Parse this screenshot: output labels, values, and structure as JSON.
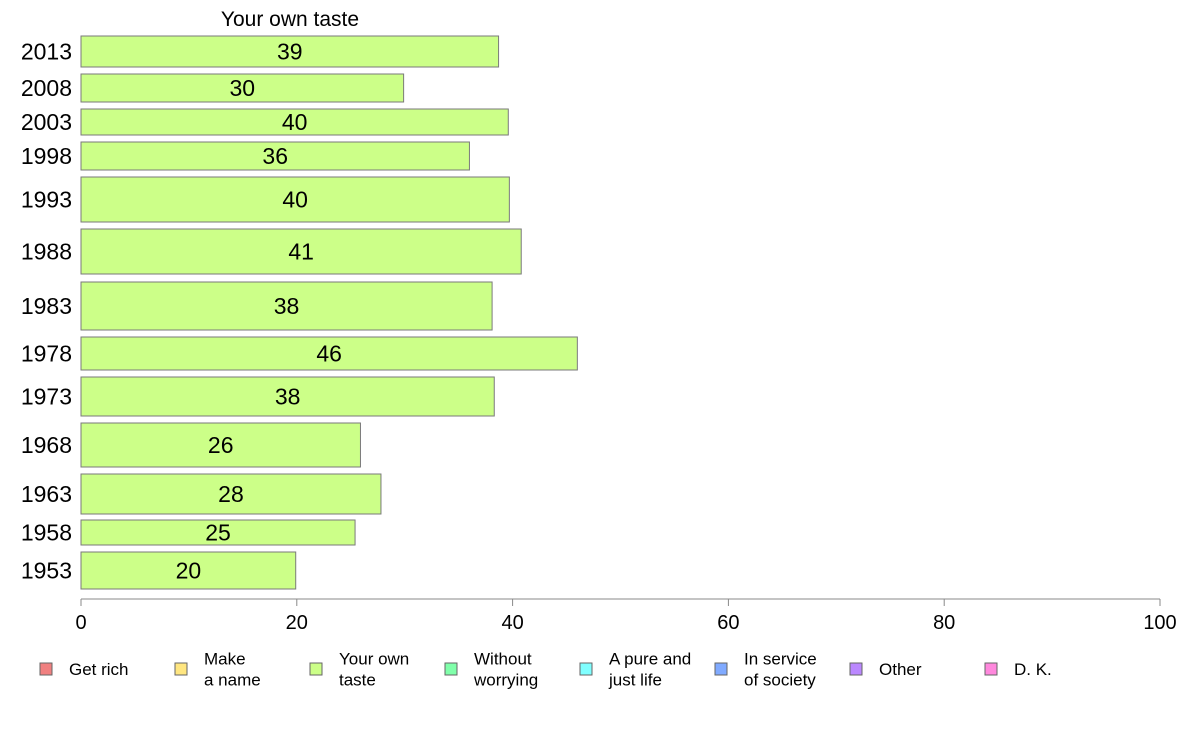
{
  "chart_data": {
    "type": "bar",
    "orientation": "horizontal",
    "title": "Your own taste",
    "xlabel": "",
    "ylabel": "",
    "xlim": [
      0,
      100
    ],
    "xticks": [
      0,
      20,
      40,
      60,
      80,
      100
    ],
    "grid": false,
    "legend_position": "bottom",
    "categories": [
      "2013",
      "2008",
      "2003",
      "1998",
      "1993",
      "1988",
      "1983",
      "1978",
      "1973",
      "1968",
      "1963",
      "1958",
      "1953"
    ],
    "series": [
      {
        "name": "Your own taste",
        "color": "#ccff88",
        "values": [
          38.7,
          29.9,
          39.6,
          36.0,
          39.7,
          40.8,
          38.1,
          46.0,
          38.3,
          25.9,
          27.8,
          25.4,
          19.9
        ],
        "labels": [
          "39",
          "30",
          "40",
          "36",
          "40",
          "41",
          "38",
          "46",
          "38",
          "26",
          "28",
          "25",
          "20"
        ]
      }
    ],
    "legend": [
      {
        "label_lines": [
          "Get rich"
        ],
        "color": "#f08080"
      },
      {
        "label_lines": [
          "Make",
          "a name"
        ],
        "color": "#ffe680"
      },
      {
        "label_lines": [
          "Your own",
          "taste"
        ],
        "color": "#ccff88"
      },
      {
        "label_lines": [
          "Without",
          "worrying"
        ],
        "color": "#80ffaa"
      },
      {
        "label_lines": [
          "A pure and",
          "just life"
        ],
        "color": "#80ffff"
      },
      {
        "label_lines": [
          "In service",
          "of society"
        ],
        "color": "#80aaff"
      },
      {
        "label_lines": [
          "Other"
        ],
        "color": "#bb88ff"
      },
      {
        "label_lines": [
          "D. K."
        ],
        "color": "#ff88dd"
      }
    ]
  }
}
